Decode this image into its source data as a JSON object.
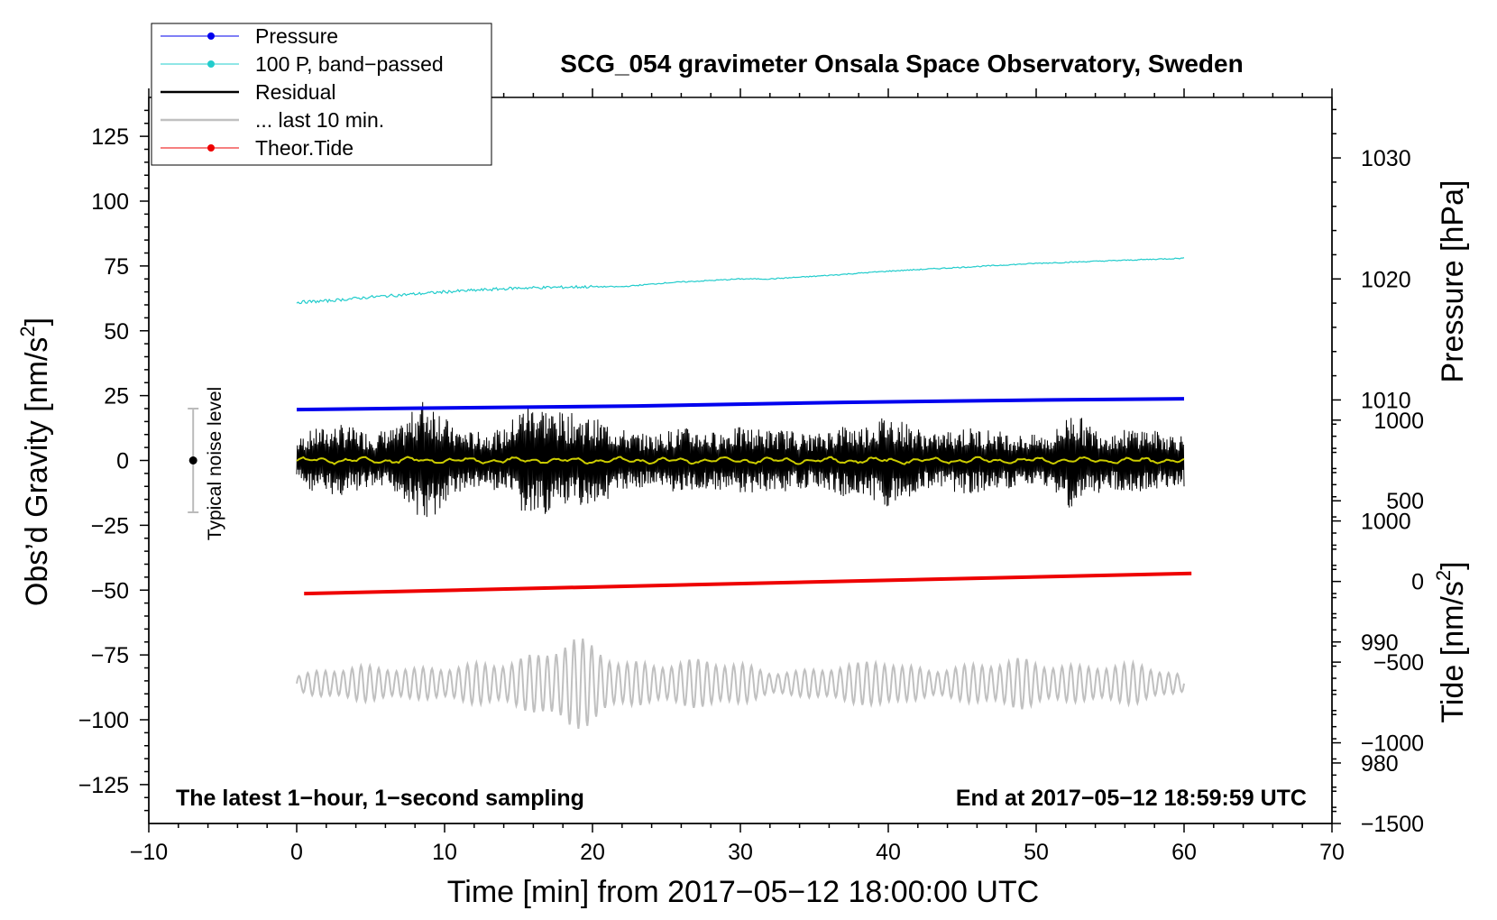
{
  "chart_data": {
    "type": "line",
    "title": "SCG_054 gravimeter Onsala Space Observatory, Sweden",
    "xlabel": "Time [min] from 2017−05−12 18:00:00 UTC",
    "ylabel_left_main": "Obs’d Gravity [nm/s",
    "ylabel_left_sup": "2",
    "ylabel_left_end": "]",
    "ylabel_right_pressure": "Pressure [hPa]",
    "ylabel_right_tide_main": "Tide [nm/s",
    "ylabel_right_tide_sup": "2",
    "ylabel_right_tide_end": "]",
    "xlim": [
      -10,
      70
    ],
    "ylim": [
      -140,
      140
    ],
    "pressure_ylim": [
      975,
      1035
    ],
    "tide_ylim": [
      -1500,
      3000
    ],
    "x_ticks": [
      -10,
      0,
      10,
      20,
      30,
      40,
      50,
      60,
      70
    ],
    "x_tick_labels": [
      "−10",
      "0",
      "10",
      "20",
      "30",
      "40",
      "50",
      "60",
      "70"
    ],
    "y_ticks": [
      125,
      100,
      75,
      50,
      25,
      0,
      -25,
      -50,
      -75,
      -100,
      -125
    ],
    "y_tick_labels": [
      "125",
      "100",
      "75",
      "50",
      "25",
      "0",
      "−25",
      "−50",
      "−75",
      "−100",
      "−125"
    ],
    "pressure_ticks": [
      980,
      990,
      1000,
      1010,
      1020,
      1030
    ],
    "pressure_tick_labels": [
      "980",
      "990",
      "1000",
      "1010",
      "1020",
      "1030"
    ],
    "tide_ticks": [
      -1500,
      -1000,
      -500,
      0,
      500,
      1000
    ],
    "tide_tick_labels": [
      "−1500",
      "−1000",
      "−500",
      "0",
      "500",
      "1000"
    ],
    "legend": {
      "position": "top-left",
      "entries": [
        {
          "label": "Pressure",
          "color": "#0000ee",
          "marker": true
        },
        {
          "label": "100 P, band−passed",
          "color": "#22cccc",
          "marker": true
        },
        {
          "label": "Residual",
          "color": "#000000",
          "marker": false
        },
        {
          "label": "... last 10 min.",
          "color": "#c0c0c0",
          "marker": false
        },
        {
          "label": "Theor.Tide",
          "color": "#ee0000",
          "marker": true
        }
      ]
    },
    "series": [
      {
        "name": "Pressure",
        "color": "#0000ee",
        "axis": "pressure",
        "x": [
          0,
          7,
          23,
          37,
          51,
          60
        ],
        "y": [
          1009.2,
          1009.3,
          1009.5,
          1009.8,
          1010.0,
          1010.1
        ]
      },
      {
        "name": "100 P, band−passed",
        "color": "#22cccc",
        "axis": "left",
        "x": [
          0,
          2,
          5,
          10,
          15,
          20,
          22,
          25,
          30,
          32,
          35,
          40,
          45,
          50,
          55,
          60
        ],
        "y": [
          61,
          61.5,
          63,
          65,
          66.5,
          67,
          67,
          68.5,
          70,
          70,
          71,
          73,
          74.5,
          76,
          77,
          78
        ]
      },
      {
        "name": "Residual",
        "color": "#000000",
        "axis": "left",
        "x_start": 0,
        "x_end": 60,
        "envelope": {
          "t": [
            0,
            1,
            3,
            5,
            7,
            8.5,
            9.5,
            10.5,
            12,
            14,
            15.5,
            16.5,
            17.5,
            19,
            21,
            22.5,
            24,
            26,
            28,
            30,
            32,
            33,
            35,
            37,
            38,
            40,
            41.5,
            43,
            45,
            47,
            49,
            51,
            52.5,
            53.5,
            55,
            57,
            58.5,
            60
          ],
          "amp": [
            8,
            12,
            14,
            11,
            13,
            24,
            22,
            13,
            11,
            12,
            23,
            22,
            19,
            18,
            15,
            11,
            10,
            13,
            11,
            13,
            12,
            12,
            10,
            14,
            13,
            18,
            14,
            10,
            13,
            12,
            10,
            10,
            20,
            14,
            11,
            13,
            11,
            10
          ]
        }
      },
      {
        "name": "Residual smoothed",
        "color": "#cccc00",
        "axis": "left",
        "x_start": 0,
        "x_end": 60,
        "amp": 1.2
      },
      {
        "name": "... last 10 min.",
        "color": "#c0c0c0",
        "axis": "left",
        "x_start": 0,
        "x_end": 60,
        "center": -86,
        "envelope": {
          "t": [
            0,
            2,
            4,
            6,
            8,
            10,
            12,
            14,
            15,
            16.5,
            17.5,
            18.5,
            19.5,
            20.5,
            22,
            24,
            26,
            28,
            30,
            32,
            34,
            36,
            38,
            39.5,
            41,
            43,
            45,
            47,
            49,
            51,
            53,
            55,
            57,
            59,
            60
          ],
          "amp": [
            3,
            6,
            7,
            7,
            6,
            7,
            8,
            9,
            10,
            12,
            16,
            19,
            17,
            14,
            9,
            8,
            9,
            10,
            8,
            5,
            5,
            7,
            8,
            11,
            7,
            6,
            7,
            9,
            10,
            8,
            7,
            8,
            8,
            5,
            3
          ]
        }
      },
      {
        "name": "Theor.Tide",
        "color": "#ee0000",
        "axis": "tide",
        "x": [
          0.5,
          60.5
        ],
        "y": [
          -75,
          50
        ]
      }
    ],
    "noise_bar": {
      "label": "Typical noise level",
      "x": -7,
      "center": 0,
      "half_range": 20
    },
    "annotations": {
      "bottom_left": "The latest 1−hour, 1−second sampling",
      "bottom_right": "End at 2017−05−12 18:59:59 UTC"
    },
    "grid": false
  }
}
